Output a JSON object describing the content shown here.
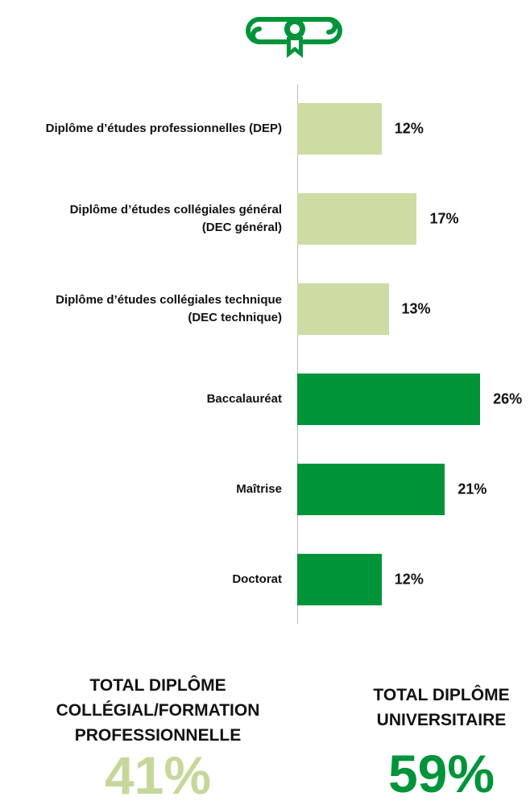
{
  "chart_data": {
    "type": "bar",
    "categories": [
      "Diplôme d’études professionnelles (DEP)",
      "Diplôme d’études collégiales général\n(DEC général)",
      "Diplôme d’études collégiales technique\n(DEC technique)",
      "Baccalauréat",
      "Maîtrise",
      "Doctorat"
    ],
    "values": [
      12,
      17,
      13,
      26,
      21,
      12
    ],
    "value_labels": [
      "12%",
      "17%",
      "13%",
      "26%",
      "21%",
      "12%"
    ],
    "colors": [
      "#cddca3",
      "#cddca3",
      "#cddca3",
      "#00943a",
      "#00943a",
      "#00943a"
    ],
    "xlim": [
      0,
      30
    ]
  },
  "totals": [
    {
      "label": "TOTAL DIPLÔME\nCOLLÉGIAL/FORMATION\nPROFESSIONNELLE",
      "value": 41,
      "value_label": "41%",
      "color": "#c5d89a"
    },
    {
      "label": "TOTAL DIPLÔME\nUNIVERSITAIRE",
      "value": 59,
      "value_label": "59%",
      "color": "#00943a"
    }
  ]
}
